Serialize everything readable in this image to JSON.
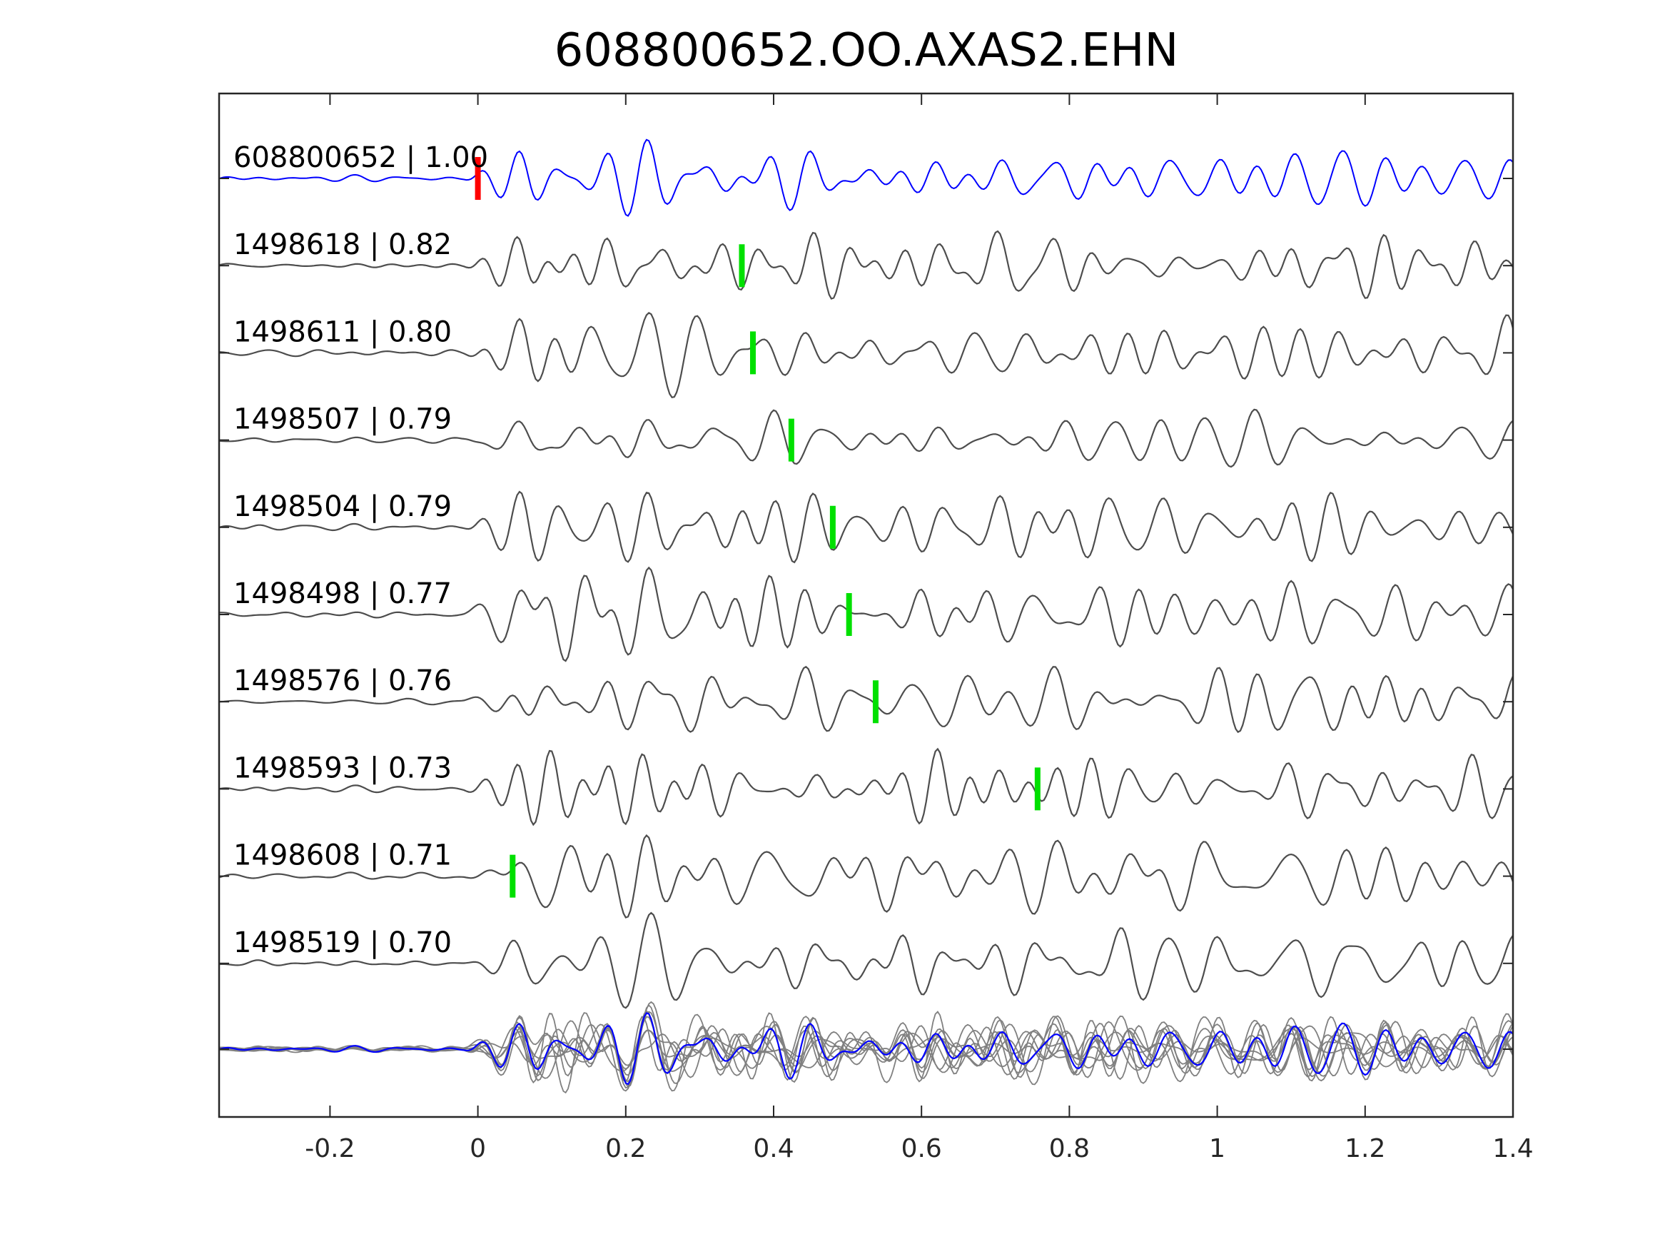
{
  "chart_data": {
    "type": "line",
    "title": "608800652.OO.AXAS2.EHN",
    "xlabel": "",
    "ylabel": "",
    "xlim": [
      -0.35,
      1.4
    ],
    "xticks": [
      -0.2,
      0,
      0.2,
      0.4,
      0.6,
      0.8,
      1,
      1.2,
      1.4
    ],
    "xtick_labels": [
      "-0.2",
      "0",
      "0.2",
      "0.4",
      "0.6",
      "0.8",
      "1",
      "1.2",
      "1.4"
    ],
    "grid": false,
    "colors": {
      "template": "#0000ff",
      "match": "#4d4d4d",
      "stack": "#808080",
      "template_pick": "#ff0000",
      "match_pick": "#00e000",
      "axis": "#262626"
    },
    "traces": [
      {
        "id": "608800652",
        "cc": "1.00",
        "label": "608800652 | 1.00",
        "pick_time": 0.0,
        "role": "template"
      },
      {
        "id": "1498618",
        "cc": "0.82",
        "label": "1498618 | 0.82",
        "pick_time": 0.357,
        "role": "match"
      },
      {
        "id": "1498611",
        "cc": "0.80",
        "label": "1498611 | 0.80",
        "pick_time": 0.372,
        "role": "match"
      },
      {
        "id": "1498507",
        "cc": "0.79",
        "label": "1498507 | 0.79",
        "pick_time": 0.424,
        "role": "match"
      },
      {
        "id": "1498504",
        "cc": "0.79",
        "label": "1498504 | 0.79",
        "pick_time": 0.48,
        "role": "match"
      },
      {
        "id": "1498498",
        "cc": "0.77",
        "label": "1498498 | 0.77",
        "pick_time": 0.502,
        "role": "match"
      },
      {
        "id": "1498576",
        "cc": "0.76",
        "label": "1498576 | 0.76",
        "pick_time": 0.538,
        "role": "match"
      },
      {
        "id": "1498593",
        "cc": "0.73",
        "label": "1498593 | 0.73",
        "pick_time": 0.757,
        "role": "match"
      },
      {
        "id": "1498608",
        "cc": "0.71",
        "label": "1498608 | 0.71",
        "pick_time": 0.047,
        "role": "match"
      },
      {
        "id": "1498519",
        "cc": "0.70",
        "label": "1498519 | 0.70",
        "pick_time": null,
        "role": "match"
      }
    ],
    "stack_overlay": true
  }
}
